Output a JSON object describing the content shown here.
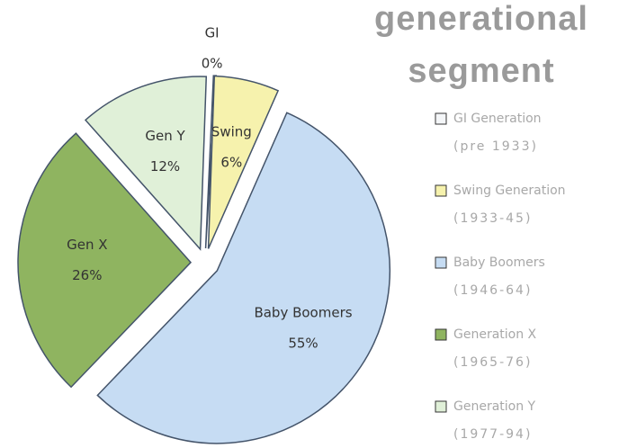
{
  "chart_data": {
    "type": "pie",
    "title": "generational segment",
    "categories": [
      "GI",
      "Swing",
      "Baby Boomers",
      "Gen X",
      "Gen Y"
    ],
    "values": [
      0,
      6,
      55,
      26,
      12
    ],
    "value_labels": [
      "0%",
      "6%",
      "55%",
      "26%",
      "12%"
    ],
    "colors": [
      "#f4f6f8",
      "#f6f2ad",
      "#c6dcf3",
      "#8fb460",
      "#e0f0d8"
    ],
    "legend": [
      {
        "name": "GI Generation",
        "period": "(pre 1933)"
      },
      {
        "name": "Swing Generation",
        "period": "(1933-45)"
      },
      {
        "name": "Baby Boomers",
        "period": "(1946-64)"
      },
      {
        "name": "Generation X",
        "period": "(1965-76)"
      },
      {
        "name": "Generation Y",
        "period": "(1977-94)"
      }
    ]
  }
}
